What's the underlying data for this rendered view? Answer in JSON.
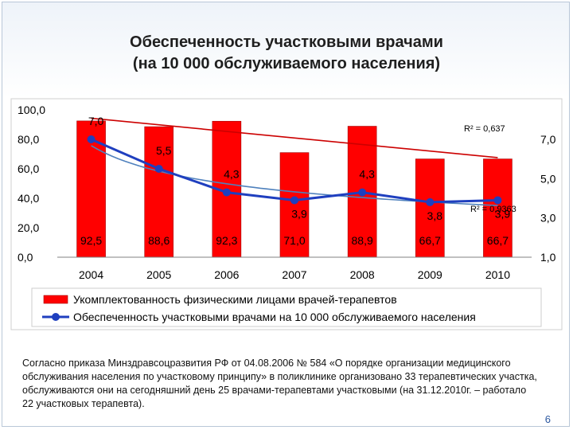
{
  "slide": {
    "title_line1": "Обеспеченность участковыми врачами",
    "title_line2": "(на 10 000 обслуживаемого населения)",
    "note": "Согласно приказа Минздравсоцразвития РФ от 04.08.2006 № 584 «О порядке организации медицинского обслуживания населения по участковому принципу» в поликлинике организовано 33 терапевтических участка, обслуживаются они на сегодняшний день 25 врачами-терапевтами участковыми (на 31.12.2010г. – работало 22 участковых терапевта).",
    "page_number": "6"
  },
  "chart_data": {
    "type": "bar",
    "categories": [
      "2004",
      "2005",
      "2006",
      "2007",
      "2008",
      "2009",
      "2010"
    ],
    "series": [
      {
        "name": "Укомплектованность физическими лицами врачей-терапевтов",
        "type": "bar",
        "axis": "left",
        "values": [
          92.5,
          88.6,
          92.3,
          71.0,
          88.9,
          66.7,
          66.7
        ],
        "labels": [
          "92,5",
          "88,6",
          "92,3",
          "71,0",
          "88,9",
          "66,7",
          "66,7"
        ],
        "color": "#ff0000",
        "trend_r2_label": "R² = 0,637",
        "trend_color": "#cc0000"
      },
      {
        "name": "Обеспеченность участковыми врачами на 10 000 обслуживаемого населения",
        "type": "line",
        "axis": "right",
        "values": [
          7.0,
          5.5,
          4.3,
          3.9,
          4.3,
          3.8,
          3.9
        ],
        "labels": [
          "7,0",
          "5,5",
          "4,3",
          "3,9",
          "4,3",
          "3,8",
          "3,9"
        ],
        "color": "#1f3fbf",
        "trend_r2_label": "R² = 0,9363",
        "trend_color": "#4f81bd"
      }
    ],
    "y_left": {
      "ticks": [
        "0,0",
        "20,0",
        "40,0",
        "60,0",
        "80,0",
        "100,0"
      ],
      "min": 0,
      "max": 100
    },
    "y_right": {
      "ticks": [
        "1,0",
        "3,0",
        "5,0",
        "7,0"
      ],
      "min": 1,
      "max": 8.5
    },
    "legend_position": "bottom",
    "grid": false
  }
}
